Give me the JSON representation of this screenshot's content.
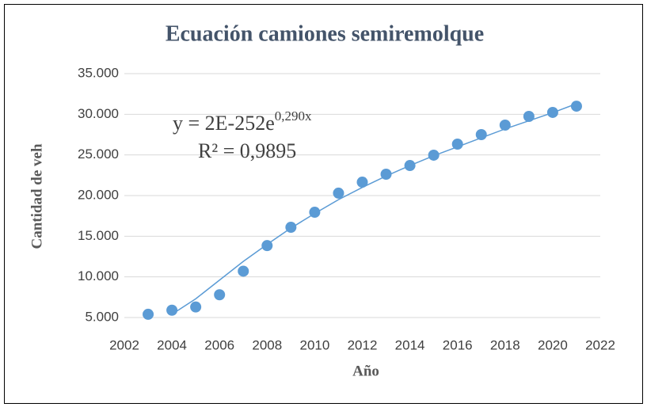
{
  "chart_data": {
    "type": "scatter",
    "title": "Ecuación camiones semiremolque",
    "x_label": "Año",
    "y_label": "Cantidad de veh",
    "x": [
      2003,
      2004,
      2005,
      2006,
      2007,
      2008,
      2009,
      2010,
      2011,
      2012,
      2013,
      2014,
      2015,
      2016,
      2017,
      2018,
      2019,
      2020,
      2021
    ],
    "values": [
      5400,
      5900,
      6300,
      7800,
      10700,
      13850,
      16100,
      17950,
      20300,
      21650,
      22630,
      23700,
      24970,
      26330,
      27500,
      28670,
      29740,
      30230,
      31000
    ],
    "color": "#5b9bd5",
    "trendline": {
      "x": [
        2004,
        2005,
        2006,
        2007,
        2008,
        2009,
        2010,
        2011,
        2012,
        2013,
        2014,
        2015,
        2016,
        2017,
        2018,
        2019,
        2020,
        2021
      ],
      "values": [
        5400,
        7300,
        9600,
        11900,
        14000,
        16000,
        17800,
        19500,
        21000,
        22400,
        23700,
        24900,
        26000,
        27100,
        28200,
        29200,
        30200,
        31300
      ],
      "color": "#5b9bd5"
    },
    "annotations": {
      "equation": "y = 2E-252e",
      "exponent": "0,290x",
      "r_squared": "R² = 0,9895"
    },
    "xlim": [
      2002,
      2022
    ],
    "xticks": [
      2002,
      2004,
      2006,
      2008,
      2010,
      2012,
      2014,
      2016,
      2018,
      2020,
      2022
    ],
    "ylim": [
      5000,
      35000
    ],
    "yticks": [
      {
        "value": 5000,
        "label": "5.000"
      },
      {
        "value": 10000,
        "label": "10.000"
      },
      {
        "value": 15000,
        "label": "15.000"
      },
      {
        "value": 20000,
        "label": "20.000"
      },
      {
        "value": 25000,
        "label": "25.000"
      },
      {
        "value": 30000,
        "label": "30.000"
      },
      {
        "value": 35000,
        "label": "35.000"
      }
    ],
    "grid": true
  }
}
